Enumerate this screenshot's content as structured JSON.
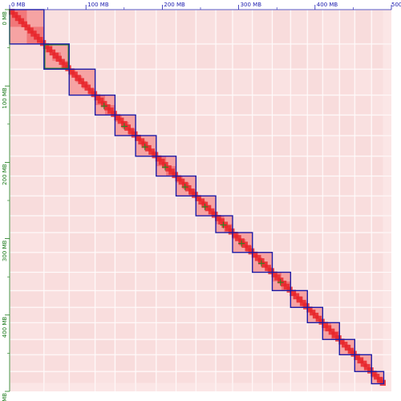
{
  "colors": {
    "background": "#ffffff",
    "heat_base": "#fbe6e6",
    "heat_stripe": "#f4c9c9",
    "heat_dark": "#e8262a",
    "heat_mid": "#f26b6b",
    "block_box": "#1c1ca8",
    "inner_box": "#228b22",
    "top_axis": "#2020b0",
    "left_axis": "#1a7a1a",
    "gap_line": "#ffffff"
  },
  "top_axis": {
    "labels": [
      "0 MB",
      "100 MB",
      "200 MB",
      "300 MB",
      "400 MB",
      "500"
    ],
    "positions_mb": [
      0,
      100,
      200,
      300,
      400,
      500
    ]
  },
  "left_axis": {
    "labels": [
      "0 MB",
      "100 MB",
      "200 MB",
      "300 MB",
      "400 MB",
      "MB"
    ],
    "positions_mb": [
      0,
      100,
      200,
      300,
      400,
      500
    ]
  },
  "genome_total_mb": 500,
  "blocks": [
    {
      "start_mb": 0,
      "end_mb": 45,
      "inner": false
    },
    {
      "start_mb": 45,
      "end_mb": 78,
      "inner": true
    },
    {
      "start_mb": 78,
      "end_mb": 112,
      "inner": false
    },
    {
      "start_mb": 112,
      "end_mb": 138,
      "inner": false
    },
    {
      "start_mb": 138,
      "end_mb": 165,
      "inner": false
    },
    {
      "start_mb": 165,
      "end_mb": 192,
      "inner": false
    },
    {
      "start_mb": 192,
      "end_mb": 218,
      "inner": false
    },
    {
      "start_mb": 218,
      "end_mb": 244,
      "inner": false
    },
    {
      "start_mb": 244,
      "end_mb": 270,
      "inner": false
    },
    {
      "start_mb": 270,
      "end_mb": 292,
      "inner": false
    },
    {
      "start_mb": 292,
      "end_mb": 318,
      "inner": false
    },
    {
      "start_mb": 318,
      "end_mb": 344,
      "inner": false
    },
    {
      "start_mb": 344,
      "end_mb": 368,
      "inner": false
    },
    {
      "start_mb": 368,
      "end_mb": 390,
      "inner": false
    },
    {
      "start_mb": 390,
      "end_mb": 410,
      "inner": false
    },
    {
      "start_mb": 410,
      "end_mb": 432,
      "inner": false
    },
    {
      "start_mb": 432,
      "end_mb": 452,
      "inner": false
    },
    {
      "start_mb": 452,
      "end_mb": 474,
      "inner": false
    },
    {
      "start_mb": 474,
      "end_mb": 490,
      "inner": false
    }
  ]
}
